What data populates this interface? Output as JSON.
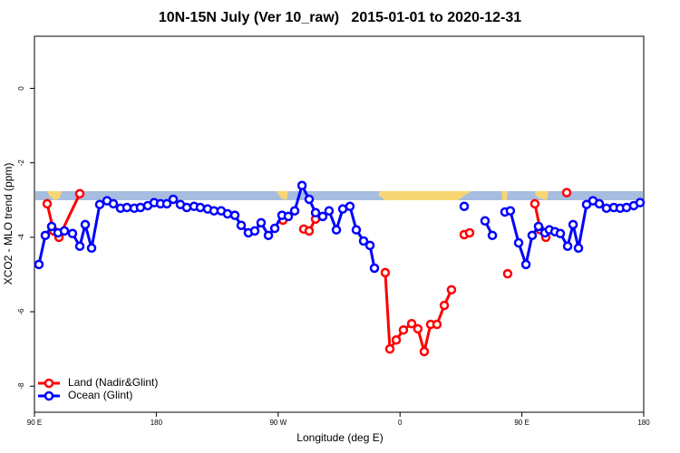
{
  "chart_data": {
    "type": "line",
    "title": "10N-15N July (Ver 10_raw)   2015-01-01 to 2020-12-31",
    "x_label": "Longitude (deg E)",
    "y_label": "XCO2 - MLO trend (ppm)",
    "xlim": [
      90,
      540
    ],
    "ylim": [
      -8.7,
      1.4
    ],
    "xticks": [
      {
        "value": 90,
        "label": "90 E"
      },
      180,
      {
        "value": 270,
        "label": "90 W"
      },
      {
        "value": 360,
        "label": "0"
      },
      {
        "value": 450,
        "label": "90 E"
      },
      {
        "value": 540,
        "label": "180"
      }
    ],
    "yticks": [
      0,
      -2,
      -4,
      -6,
      -8
    ],
    "legend": "bottom-left",
    "series": [
      {
        "name": "Land (Nadir&Glint)",
        "color": "#ff0000",
        "x": [
          99.4,
          104.1,
          108.1,
          123.5,
          null,
          273.5,
          null,
          288.9,
          292.9,
          297.6,
          null,
          349.1,
          352.5,
          357.2,
          362.5,
          368.6,
          373.2,
          377.9,
          382.6,
          387.3,
          392.7,
          398.0,
          null,
          407.4,
          411.4,
          null,
          439.5,
          null,
          459.6,
          463.6,
          467.7,
          null,
          483.1
        ],
        "values": [
          -3.1,
          -3.83,
          -4.0,
          -2.83,
          null,
          -3.54,
          null,
          -3.78,
          -3.83,
          -3.51,
          null,
          -4.95,
          -7.0,
          -6.76,
          -6.49,
          -6.32,
          -6.46,
          -7.07,
          -6.34,
          -6.34,
          -5.83,
          -5.41,
          null,
          -3.93,
          -3.88,
          null,
          -4.98,
          null,
          -3.1,
          -3.8,
          -4.0,
          null,
          -2.8
        ]
      },
      {
        "name": "Ocean (Glint)",
        "color": "#0000ff",
        "x": [
          93.3,
          98.0,
          102.7,
          107.4,
          112.1,
          118.1,
          123.5,
          127.5,
          132.2,
          138.2,
          143.6,
          148.3,
          153.6,
          158.3,
          163.7,
          168.3,
          173.7,
          178.4,
          183.1,
          187.8,
          192.5,
          197.8,
          202.5,
          207.9,
          212.5,
          217.9,
          222.6,
          227.9,
          232.6,
          238.0,
          242.7,
          248.0,
          252.7,
          257.4,
          262.8,
          267.5,
          272.8,
          277.5,
          282.2,
          287.6,
          292.9,
          297.6,
          302.9,
          307.6,
          313.0,
          317.7,
          323.0,
          327.7,
          333.1,
          337.8,
          341.1,
          null,
          407.4,
          null,
          422.8,
          428.2,
          null,
          437.5,
          441.5,
          447.6,
          453.0,
          457.6,
          462.3,
          467.0,
          470.3,
          474.4,
          478.4,
          483.8,
          487.8,
          491.8,
          497.8,
          502.5,
          507.2,
          512.5,
          517.9,
          522.6,
          527.3,
          532.6,
          537.3
        ],
        "values": [
          -4.73,
          -3.95,
          -3.71,
          -3.88,
          -3.83,
          -3.9,
          -4.24,
          -3.66,
          -4.29,
          -3.12,
          -3.02,
          -3.1,
          -3.22,
          -3.2,
          -3.22,
          -3.2,
          -3.15,
          -3.07,
          -3.1,
          -3.1,
          -2.98,
          -3.12,
          -3.2,
          -3.17,
          -3.2,
          -3.24,
          -3.29,
          -3.29,
          -3.37,
          -3.41,
          -3.68,
          -3.88,
          -3.83,
          -3.61,
          -3.95,
          -3.76,
          -3.41,
          -3.44,
          -3.29,
          -2.61,
          -2.98,
          -3.34,
          -3.44,
          -3.29,
          -3.8,
          -3.24,
          -3.17,
          -3.8,
          -4.1,
          -4.22,
          -4.83,
          null,
          -3.17,
          null,
          -3.56,
          -3.95,
          null,
          -3.32,
          -3.29,
          -4.15,
          -4.73,
          -3.95,
          -3.71,
          -3.88,
          -3.8,
          -3.85,
          -3.9,
          -4.24,
          -3.66,
          -4.29,
          -3.12,
          -3.02,
          -3.1,
          -3.22,
          -3.2,
          -3.22,
          -3.2,
          -3.15,
          -3.07
        ]
      }
    ]
  }
}
